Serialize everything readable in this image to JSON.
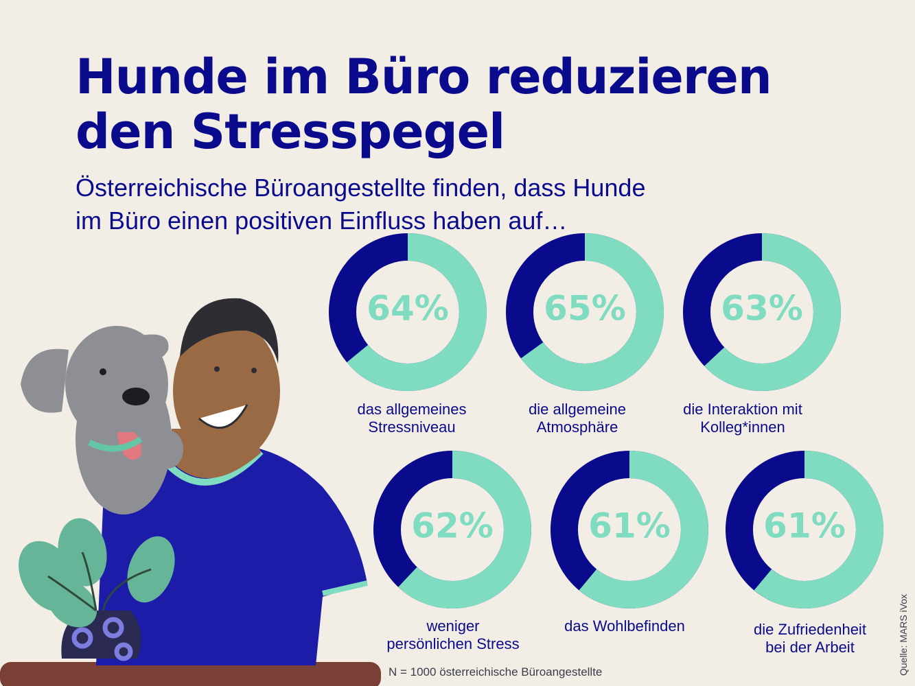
{
  "header": {
    "title_line1": "Hunde im Büro reduzieren",
    "title_line2": "den Stresspegel",
    "subtitle_line1": "Österreichische Büroangestellte finden, dass Hunde",
    "subtitle_line2": "im Büro einen positiven Einfluss haben auf…"
  },
  "colors": {
    "accent": "#0a0a8c",
    "ring_fill": "#7fdcc0",
    "ring_empty": "#0a0a8c",
    "background": "#f2eee6"
  },
  "chart_data": {
    "type": "pie",
    "unit": "%",
    "categories": [
      "das allgemeines\nStressniveau",
      "die allgemeine\nAtmosphäre",
      "die Interaktion mit\nKolleg*innen",
      "weniger\npersönlichen Stress",
      "das Wohlbefinden",
      "die Zufriedenheit\nbei der Arbeit"
    ],
    "values": [
      64,
      65,
      63,
      62,
      61,
      61
    ],
    "value_labels": [
      "64%",
      "65%",
      "63%",
      "62%",
      "61%",
      "61%"
    ]
  },
  "footer": {
    "sample_note": "N = 1000 österreichische Büroangestellte",
    "source": "Quelle: MARS iVox"
  }
}
